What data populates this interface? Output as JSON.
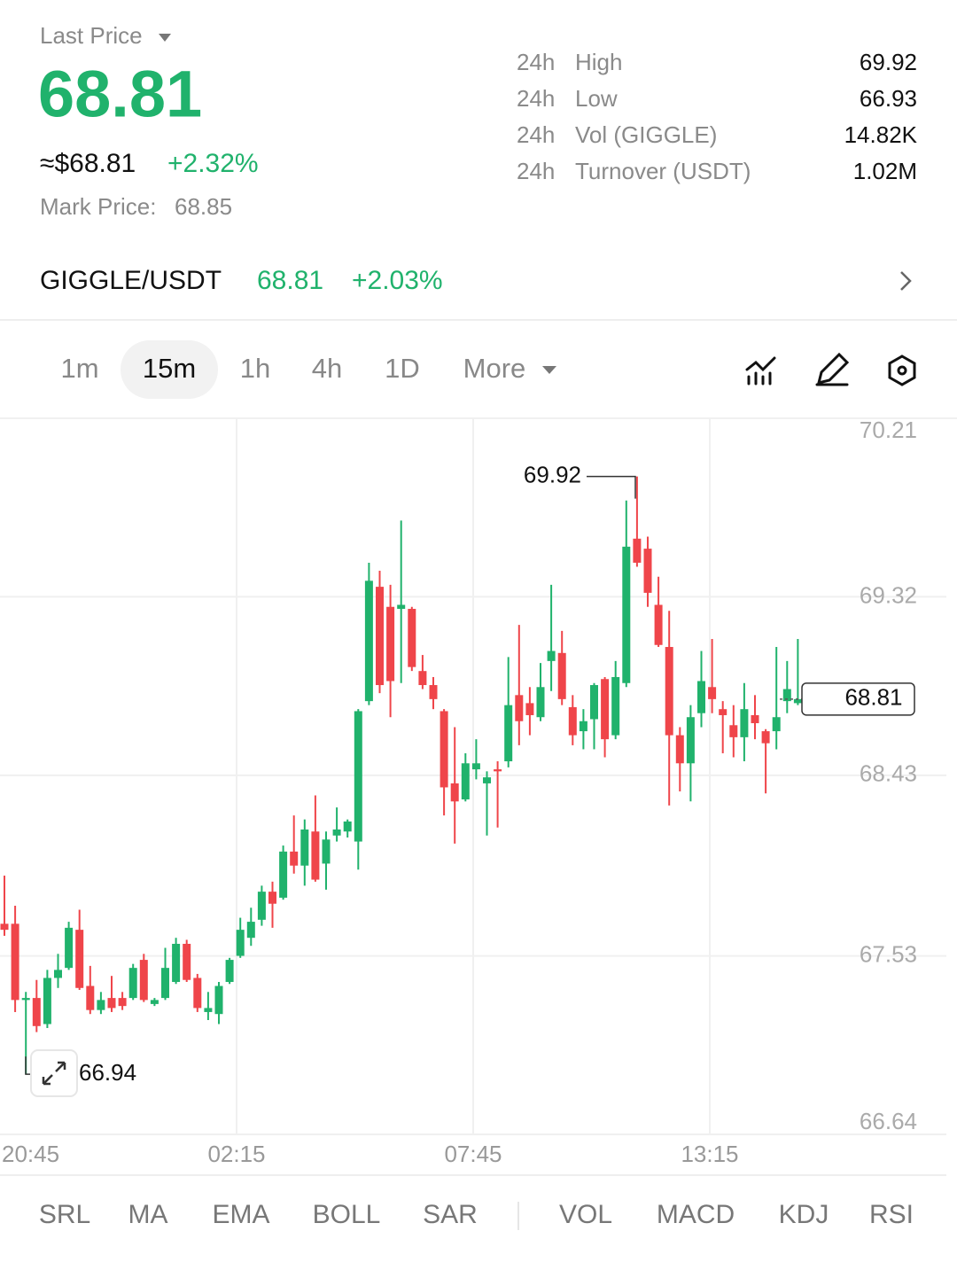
{
  "header": {
    "label": "Last Price",
    "price": "68.81",
    "usd": "≈$68.81",
    "change": "+2.32%",
    "mark_label": "Mark Price:",
    "mark_value": "68.85"
  },
  "stats": [
    {
      "period": "24h",
      "name": "High",
      "value": "69.92"
    },
    {
      "period": "24h",
      "name": "Low",
      "value": "66.93"
    },
    {
      "period": "24h",
      "name": "Vol (GIGGLE)",
      "value": "14.82K"
    },
    {
      "period": "24h",
      "name": "Turnover (USDT)",
      "value": "1.02M"
    }
  ],
  "pair": {
    "name": "GIGGLE/USDT",
    "price": "68.81",
    "change": "+2.03%"
  },
  "intervals": [
    "1m",
    "15m",
    "1h",
    "4h",
    "1D",
    "More"
  ],
  "chart_data": {
    "type": "candlestick",
    "up_color": "#20b26c",
    "down_color": "#ef454a",
    "grid": true,
    "ylim": [
      66.64,
      70.21
    ],
    "yticks": [
      70.21,
      69.32,
      68.43,
      67.53,
      66.64
    ],
    "x_labels": [
      "20:45",
      "02:15",
      "07:45",
      "13:15"
    ],
    "open": [
      67.69,
      67.69,
      67.31,
      67.32,
      67.19,
      67.42,
      67.47,
      67.66,
      67.38,
      67.26,
      67.32,
      67.32,
      67.32,
      67.51,
      67.29,
      67.32,
      67.4,
      67.59,
      67.42,
      67.25,
      67.24,
      67.4,
      67.53,
      67.62,
      67.71,
      67.85,
      67.82,
      68.05,
      67.98,
      68.15,
      67.99,
      68.13,
      68.15,
      68.1,
      68.8,
      69.37,
      69.27,
      69.26,
      69.26,
      68.95,
      68.88,
      68.75,
      68.39,
      68.31,
      68.46,
      68.39,
      68.46,
      68.5,
      68.83,
      68.79,
      68.72,
      69.0,
      69.04,
      68.77,
      68.65,
      68.71,
      68.91,
      68.63,
      68.89,
      69.61,
      69.56,
      69.28,
      69.07,
      68.63,
      68.49,
      68.74,
      68.87,
      68.76,
      68.68,
      68.62,
      68.73,
      68.65,
      68.65,
      68.8,
      68.79
    ],
    "high": [
      67.93,
      67.78,
      67.35,
      67.41,
      67.46,
      67.54,
      67.7,
      67.76,
      67.48,
      67.35,
      67.43,
      67.35,
      67.49,
      67.54,
      67.32,
      67.57,
      67.62,
      67.61,
      67.44,
      67.35,
      67.4,
      67.52,
      67.72,
      67.77,
      67.88,
      67.9,
      68.08,
      68.23,
      68.21,
      68.33,
      68.15,
      68.27,
      68.21,
      68.76,
      69.49,
      69.45,
      69.38,
      69.7,
      69.27,
      69.03,
      68.92,
      68.76,
      68.67,
      68.54,
      68.61,
      68.45,
      68.5,
      69.02,
      69.18,
      68.87,
      68.99,
      69.38,
      69.15,
      68.83,
      68.76,
      68.89,
      68.92,
      69.0,
      69.8,
      69.92,
      69.62,
      69.42,
      69.25,
      68.67,
      68.78,
      69.05,
      69.11,
      68.8,
      68.78,
      68.89,
      68.83,
      68.66,
      69.07,
      69.0,
      69.11
    ],
    "low": [
      67.63,
      67.25,
      66.94,
      67.15,
      67.17,
      67.37,
      67.46,
      67.36,
      67.24,
      67.24,
      67.25,
      67.26,
      67.31,
      67.3,
      67.28,
      67.31,
      67.39,
      67.4,
      67.25,
      67.21,
      67.19,
      67.39,
      67.52,
      67.58,
      67.68,
      67.67,
      67.81,
      67.94,
      67.88,
      67.9,
      67.86,
      68.1,
      68.12,
      67.96,
      68.78,
      68.84,
      68.72,
      68.89,
      68.95,
      68.86,
      68.76,
      68.23,
      68.09,
      68.3,
      68.41,
      68.13,
      68.17,
      68.47,
      68.58,
      68.63,
      68.7,
      68.85,
      68.78,
      68.58,
      68.56,
      68.56,
      68.52,
      68.61,
      68.87,
      69.47,
      69.27,
      69.07,
      68.28,
      68.35,
      68.3,
      68.67,
      68.74,
      68.54,
      68.52,
      68.5,
      68.61,
      68.34,
      68.56,
      68.74,
      68.78
    ],
    "close": [
      67.66,
      67.31,
      67.32,
      67.18,
      67.42,
      67.46,
      67.67,
      67.37,
      67.26,
      67.31,
      67.27,
      67.28,
      67.47,
      67.31,
      67.31,
      67.47,
      67.59,
      67.41,
      67.27,
      67.27,
      67.38,
      67.51,
      67.66,
      67.7,
      67.85,
      67.79,
      68.05,
      67.98,
      68.16,
      67.91,
      68.11,
      68.16,
      68.2,
      68.75,
      69.4,
      68.88,
      68.9,
      69.28,
      68.97,
      68.88,
      68.81,
      68.37,
      68.3,
      68.49,
      68.49,
      68.42,
      68.45,
      68.78,
      68.7,
      68.73,
      68.87,
      69.05,
      68.81,
      68.63,
      68.7,
      68.88,
      68.61,
      68.92,
      69.57,
      69.49,
      69.34,
      69.08,
      68.63,
      68.49,
      68.72,
      68.9,
      68.81,
      68.73,
      68.62,
      68.76,
      68.69,
      68.59,
      68.72,
      68.86,
      68.81
    ],
    "annotations": {
      "high": 69.92,
      "low": 66.94,
      "last": 68.81
    }
  },
  "indicators": {
    "main": [
      "SRL",
      "MA",
      "EMA",
      "BOLL",
      "SAR"
    ],
    "sub": [
      "VOL",
      "MACD",
      "KDJ",
      "RSI"
    ]
  }
}
